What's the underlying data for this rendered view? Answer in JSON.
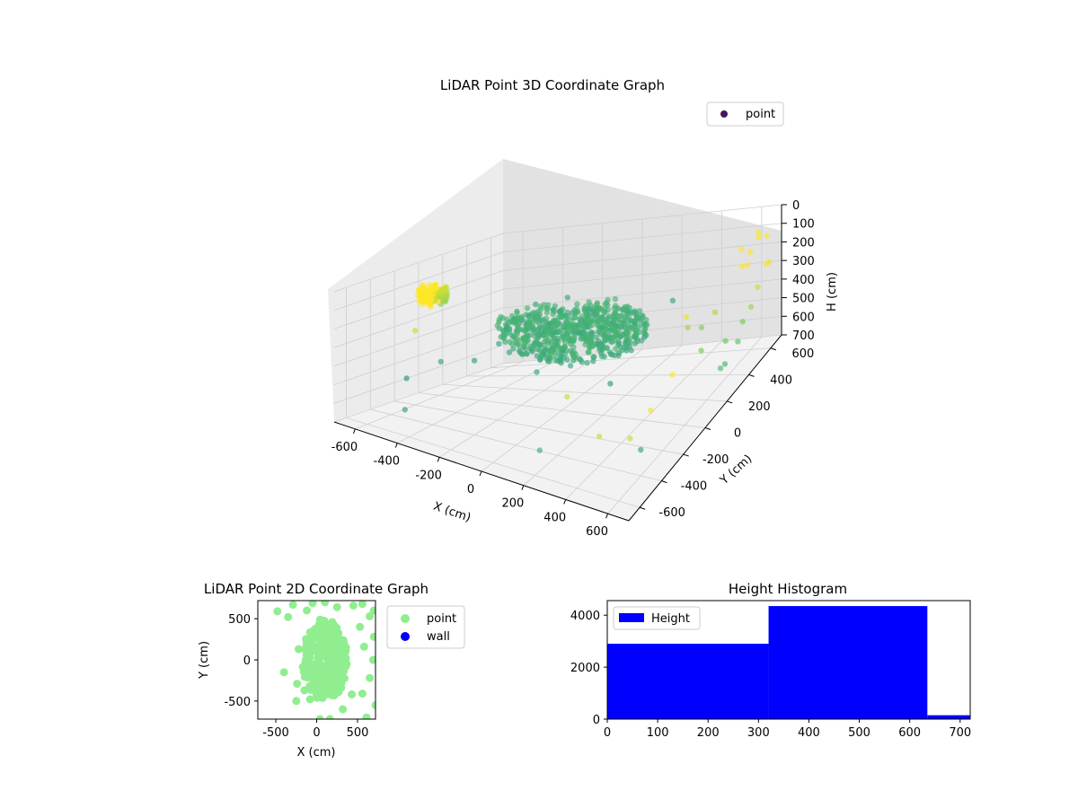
{
  "figure": {
    "colors": {
      "point_3d_legend": "#46175f",
      "point_2d": "#90ee90",
      "wall_2d": "#0000ff",
      "histogram_bar": "#0000ff",
      "pane_left": "#ececec",
      "pane_right": "#e2e2e2",
      "pane_floor": "#f2f2f2",
      "grid": "#cfcfcf"
    }
  },
  "chart_data": [
    {
      "type": "scatter",
      "subtype": "3d",
      "title": "LiDAR Point 3D Coordinate Graph",
      "xlabel": "X (cm)",
      "ylabel": "Y (cm)",
      "zlabel": "H (cm)",
      "xticks": [
        "-600",
        "-400",
        "-200",
        "0",
        "200",
        "400",
        "600"
      ],
      "yticks": [
        "-600",
        "-400",
        "-200",
        "0",
        "200",
        "400",
        "600"
      ],
      "zticks": [
        "0",
        "100",
        "200",
        "300",
        "400",
        "500",
        "600",
        "700"
      ],
      "xlim": [
        -700,
        700
      ],
      "ylim": [
        -700,
        700
      ],
      "zlim": [
        700,
        0
      ],
      "grid": true,
      "colormap": "viridis (by H)",
      "legend": {
        "placement": "top-right",
        "entries": [
          "point"
        ]
      },
      "series": [
        {
          "name": "point",
          "points_xyz": [
            [
              -150,
              -150,
              260
            ],
            [
              -90,
              -90,
              230
            ],
            [
              -40,
              -60,
              250
            ],
            [
              -120,
              -40,
              270
            ],
            [
              -60,
              40,
              250
            ],
            [
              -20,
              90,
              240
            ],
            [
              20,
              20,
              255
            ],
            [
              60,
              -20,
              260
            ],
            [
              100,
              40,
              250
            ],
            [
              140,
              -60,
              245
            ],
            [
              180,
              0,
              255
            ],
            [
              220,
              40,
              250
            ],
            [
              60,
              120,
              245
            ],
            [
              -100,
              100,
              240
            ],
            [
              -160,
              60,
              250
            ],
            [
              0,
              -150,
              260
            ],
            [
              120,
              -140,
              255
            ],
            [
              200,
              -100,
              250
            ],
            [
              260,
              60,
              245
            ],
            [
              300,
              120,
              240
            ],
            [
              80,
              200,
              245
            ],
            [
              -40,
              180,
              250
            ],
            [
              160,
              180,
              250
            ],
            [
              240,
              -20,
              255
            ],
            [
              -520,
              -280,
              60
            ],
            [
              -500,
              -240,
              40
            ],
            [
              -470,
              -220,
              80
            ],
            [
              -480,
              -300,
              70
            ],
            [
              -450,
              -260,
              50
            ],
            [
              -430,
              -240,
              90
            ],
            [
              -510,
              -200,
              60
            ],
            [
              -460,
              -320,
              70
            ],
            [
              -600,
              -200,
              300
            ],
            [
              -300,
              300,
              280
            ],
            [
              400,
              -300,
              320
            ],
            [
              300,
              -500,
              300
            ],
            [
              100,
              -400,
              280
            ],
            [
              -200,
              -400,
              300
            ],
            [
              500,
              200,
              260
            ],
            [
              -200,
              400,
              280
            ],
            [
              350,
              350,
              270
            ],
            [
              -500,
              550,
              500
            ],
            [
              -650,
              100,
              550
            ],
            [
              -300,
              650,
              520
            ],
            [
              -700,
              -100,
              600
            ],
            [
              -420,
              -600,
              560
            ],
            [
              250,
              -650,
              520
            ],
            [
              600,
              -400,
              560
            ],
            [
              620,
              560,
              150
            ],
            [
              640,
              600,
              100
            ],
            [
              600,
              520,
              200
            ],
            [
              660,
              640,
              120
            ],
            [
              650,
              580,
              60
            ],
            [
              680,
              620,
              250
            ],
            [
              640,
              500,
              180
            ],
            [
              620,
              480,
              80
            ],
            [
              700,
              560,
              220
            ],
            [
              690,
              500,
              300
            ],
            [
              700,
              420,
              350
            ],
            [
              680,
              380,
              400
            ],
            [
              700,
              300,
              450
            ],
            [
              660,
              260,
              420
            ],
            [
              690,
              200,
              500
            ],
            [
              700,
              140,
              480
            ],
            [
              560,
              350,
              330
            ],
            [
              520,
              300,
              380
            ],
            [
              480,
              250,
              350
            ],
            [
              600,
              150,
              400
            ],
            [
              700,
              -300,
              200
            ],
            [
              700,
              -500,
              250
            ],
            [
              680,
              -650,
              300
            ],
            [
              560,
              -700,
              300
            ]
          ],
          "color_scale_values": [
            0,
            350,
            700
          ]
        }
      ]
    },
    {
      "type": "scatter",
      "title": "LiDAR Point 2D Coordinate Graph",
      "xlabel": "X (cm)",
      "ylabel": "Y (cm)",
      "xticks": [
        "-500",
        "0",
        "500"
      ],
      "yticks": [
        "-500",
        "0",
        "500"
      ],
      "xlim": [
        -720,
        720
      ],
      "ylim": [
        -720,
        720
      ],
      "legend": {
        "placement": "outside-right",
        "entries": [
          "point",
          "wall"
        ]
      },
      "series": [
        {
          "name": "point",
          "cluster": {
            "center": [
              100,
              0
            ],
            "radius_x": 380,
            "radius_y": 560,
            "count": 300
          },
          "points": [
            [
              -480,
              590
            ],
            [
              -350,
              520
            ],
            [
              -290,
              670
            ],
            [
              -220,
              130
            ],
            [
              -240,
              -290
            ],
            [
              -400,
              -150
            ],
            [
              -250,
              -500
            ],
            [
              -150,
              -370
            ],
            [
              -80,
              -480
            ],
            [
              160,
              -720
            ],
            [
              40,
              -720
            ],
            [
              320,
              -600
            ],
            [
              430,
              -420
            ],
            [
              560,
              -410
            ],
            [
              650,
              -220
            ],
            [
              690,
              0
            ],
            [
              700,
              280
            ],
            [
              650,
              530
            ],
            [
              700,
              600
            ],
            [
              560,
              680
            ],
            [
              450,
              660
            ],
            [
              250,
              640
            ],
            [
              100,
              700
            ],
            [
              -50,
              690
            ],
            [
              -120,
              600
            ],
            [
              580,
              160
            ],
            [
              530,
              400
            ],
            [
              720,
              -550
            ],
            [
              610,
              -700
            ]
          ]
        },
        {
          "name": "wall",
          "points": []
        }
      ]
    },
    {
      "type": "bar",
      "subtype": "histogram",
      "title": "Height Histogram",
      "xticks": [
        "0",
        "100",
        "200",
        "300",
        "400",
        "500",
        "600",
        "700"
      ],
      "yticks": [
        "0",
        "2000",
        "4000"
      ],
      "xlim": [
        0,
        720
      ],
      "ylim": [
        0,
        4560
      ],
      "legend": {
        "placement": "top-left",
        "entries": [
          "Height"
        ]
      },
      "bins": [
        {
          "start": 0,
          "end": 320,
          "count": 2900
        },
        {
          "start": 320,
          "end": 635,
          "count": 4350
        },
        {
          "start": 635,
          "end": 720,
          "count": 150
        }
      ]
    }
  ]
}
